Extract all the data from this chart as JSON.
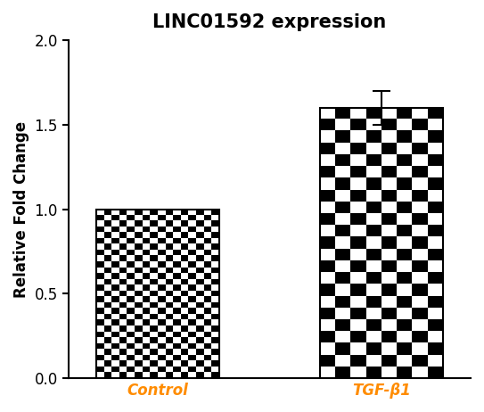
{
  "title": "LINC01592 expression",
  "ylabel": "Relative Fold Change",
  "categories": [
    "Control",
    "TGF-β1"
  ],
  "values": [
    1.0,
    1.6
  ],
  "errors": [
    0.0,
    0.1
  ],
  "ylim": [
    0.0,
    2.0
  ],
  "yticks": [
    0.0,
    0.5,
    1.0,
    1.5,
    2.0
  ],
  "bar_width": 0.55,
  "bar_positions": [
    1,
    2
  ],
  "title_fontsize": 15,
  "title_fontweight": "bold",
  "ylabel_fontsize": 12,
  "tick_labelsize": 12,
  "xlabel_fontsize": 12,
  "xlabel_color": "#FF8C00",
  "bar_facecolor": "white",
  "bar_edgecolor": "black",
  "error_capsize": 7,
  "error_linewidth": 1.5,
  "error_color": "black",
  "figsize": [
    5.43,
    4.62
  ],
  "dpi": 100,
  "checker_small_size": 4,
  "checker_large_size": 9
}
